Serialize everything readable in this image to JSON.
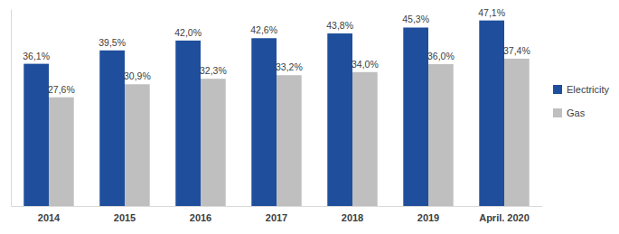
{
  "chart_data": {
    "type": "bar",
    "categories": [
      "2014",
      "2015",
      "2016",
      "2017",
      "2018",
      "2019",
      "April. 2020"
    ],
    "series": [
      {
        "name": "Electricity",
        "color": "#1f4e9c",
        "values": [
          36.1,
          39.5,
          42.0,
          42.6,
          43.8,
          45.3,
          47.1
        ],
        "value_labels": [
          "36,1%",
          "39,5%",
          "42,0%",
          "42,6%",
          "43,8%",
          "45,3%",
          "47,1%"
        ]
      },
      {
        "name": "Gas",
        "color": "#bfbfbf",
        "values": [
          27.6,
          30.9,
          32.3,
          33.2,
          34.0,
          36.0,
          37.4
        ],
        "value_labels": [
          "27,6%",
          "30,9%",
          "32,3%",
          "33,2%",
          "34,0%",
          "36,0%",
          "37,4%"
        ]
      }
    ],
    "ylim": [
      0,
      50
    ],
    "yticks": [],
    "data_labels": true,
    "tick_labels": "x",
    "legend": "right"
  }
}
